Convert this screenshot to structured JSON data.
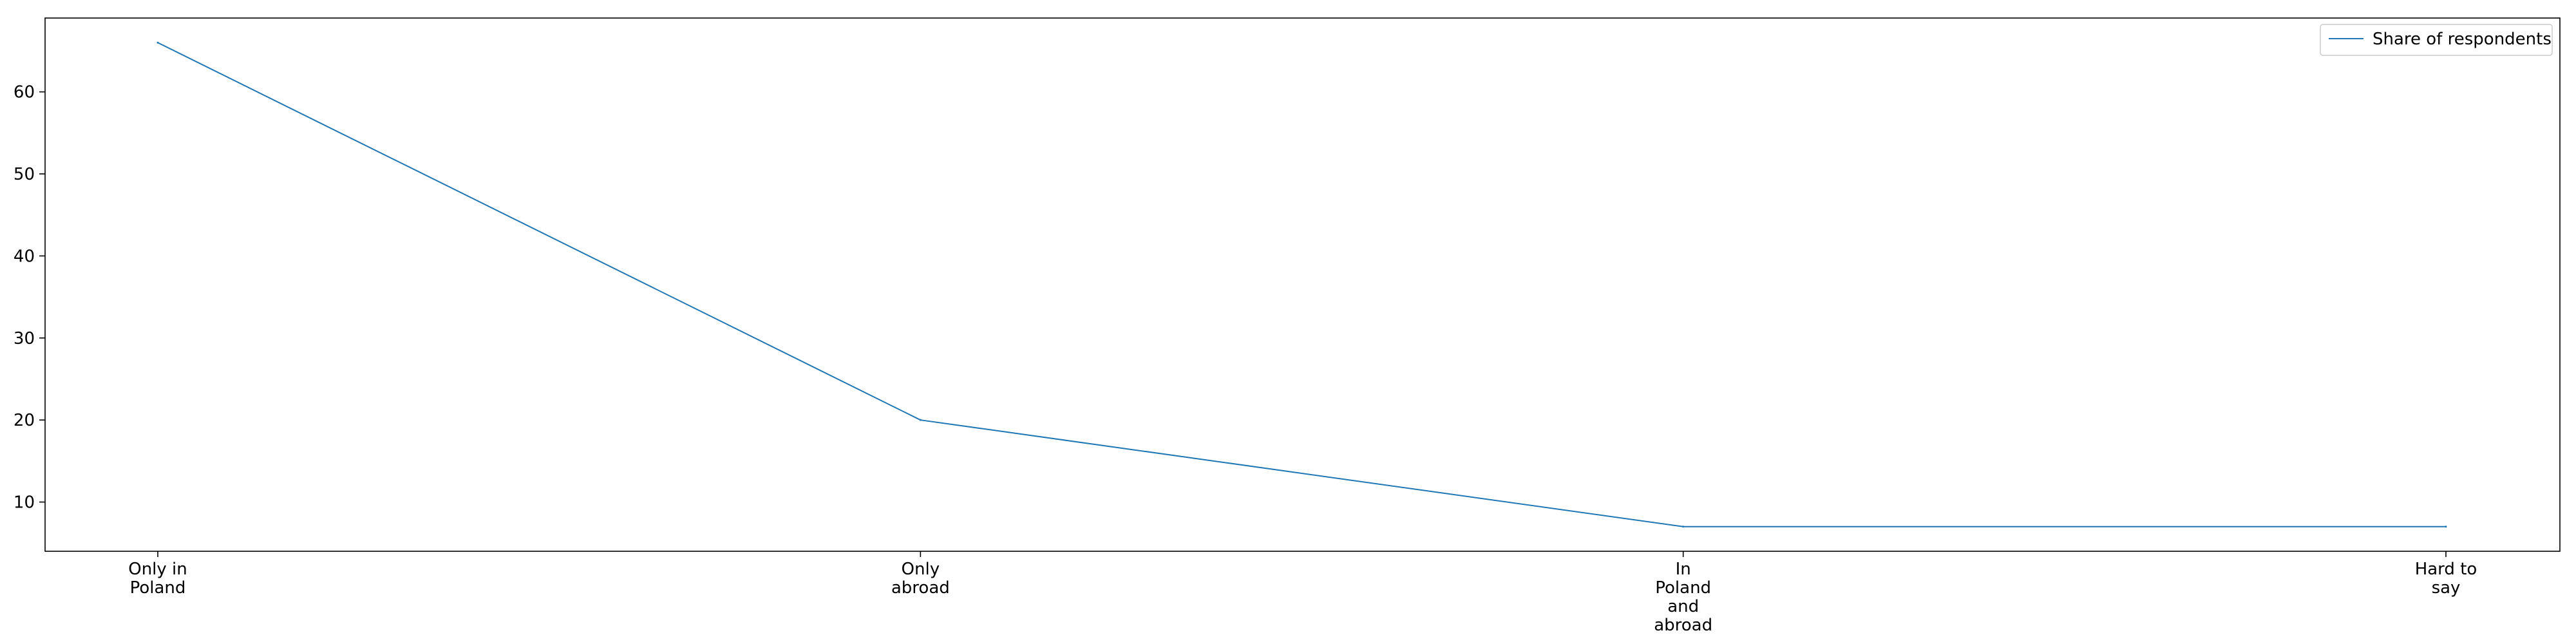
{
  "chart_data": {
    "type": "line",
    "title": "",
    "xlabel": "",
    "ylabel": "",
    "categories": [
      [
        "Only in",
        "Poland"
      ],
      [
        "Only",
        "abroad"
      ],
      [
        "In",
        "Poland",
        "and",
        "abroad"
      ],
      [
        "Hard to",
        "say"
      ]
    ],
    "series": [
      {
        "name": "Share of respondents",
        "values": [
          66,
          20,
          7,
          7
        ],
        "color": "#1f77b4"
      }
    ],
    "ylim": [
      4,
      69
    ],
    "yticks": [
      10,
      20,
      30,
      40,
      50,
      60
    ],
    "grid": false,
    "legend": "top-right"
  }
}
